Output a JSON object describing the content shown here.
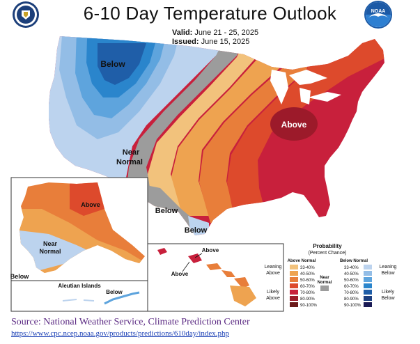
{
  "header": {
    "title": "6-10 Day Temperature Outlook",
    "valid_label": "Valid:",
    "valid_value": "June 21 - 25, 2025",
    "issued_label": "Issued:",
    "issued_value": "June 15, 2025"
  },
  "logos": {
    "left": "doc-seal",
    "right": "noaa-logo",
    "right_text": "NOAA"
  },
  "map_labels": {
    "below_nw": "Below",
    "above_ne": "Above",
    "near_normal_1": "Near",
    "near_normal_2": "Normal",
    "below_sw": "Below",
    "below_tx": "Below"
  },
  "alaska_labels": {
    "above": "Above",
    "near_1": "Near",
    "near_2": "Normal",
    "below": "Below",
    "aleutian_title": "Aleutian Islands",
    "aleutian_below": "Below"
  },
  "hawaii_labels": {
    "above_1": "Above",
    "above_2": "Above"
  },
  "legend": {
    "title": "Probability",
    "subtitle": "(Percent Chance)",
    "above_header": "Above Normal",
    "below_header": "Below Normal",
    "near_label_1": "Near",
    "near_label_2": "Normal",
    "leaning_above_1": "Leaning",
    "leaning_above_2": "Above",
    "likely_above_1": "Likely",
    "likely_above_2": "Above",
    "leaning_below_1": "Leaning",
    "leaning_below_2": "Below",
    "likely_below_1": "Likely",
    "likely_below_2": "Below",
    "above_scale": [
      {
        "label": "33-40%",
        "color": "#f2c27c"
      },
      {
        "label": "40-50%",
        "color": "#eea350"
      },
      {
        "label": "50-60%",
        "color": "#e87e3a"
      },
      {
        "label": "60-70%",
        "color": "#dd4a2c"
      },
      {
        "label": "70-80%",
        "color": "#c8203c"
      },
      {
        "label": "80-90%",
        "color": "#9c1a2a"
      },
      {
        "label": "90-100%",
        "color": "#6b1a1a"
      }
    ],
    "below_scale": [
      {
        "label": "33-40%",
        "color": "#bcd3ee"
      },
      {
        "label": "40-50%",
        "color": "#93bde6"
      },
      {
        "label": "50-60%",
        "color": "#5ea4dd"
      },
      {
        "label": "60-70%",
        "color": "#2a85cc"
      },
      {
        "label": "70-80%",
        "color": "#1f5ea8"
      },
      {
        "label": "80-90%",
        "color": "#1c3f80"
      },
      {
        "label": "90-100%",
        "color": "#1a1a55"
      }
    ],
    "near_color": "#9c9c9c"
  },
  "footer": {
    "source": "Source: National Weather Service, Climate Prediction Center",
    "url": "https://www.cpc.ncep.noaa.gov/products/predictions/610day/index.php"
  }
}
